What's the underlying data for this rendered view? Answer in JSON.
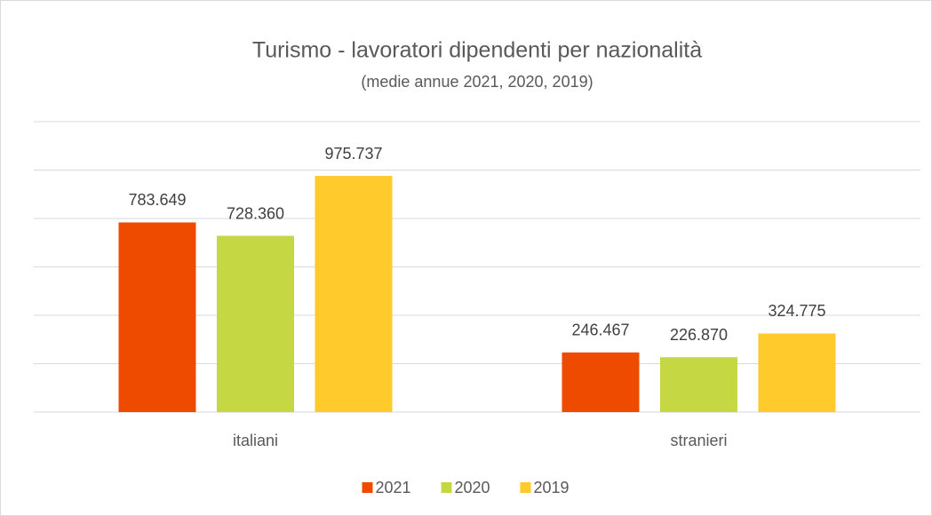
{
  "chart_data": {
    "type": "bar",
    "title": "Turismo - lavoratori dipendenti per nazionalità",
    "subtitle": "(medie annue 2021, 2020, 2019)",
    "categories": [
      "italiani",
      "stranieri"
    ],
    "series": [
      {
        "name": "2021",
        "color": "#ee4b00",
        "values": [
          783649,
          246467
        ],
        "value_labels": [
          "783.649",
          "246.467"
        ]
      },
      {
        "name": "2020",
        "color": "#c5d843",
        "values": [
          728360,
          226870
        ],
        "value_labels": [
          "728.360",
          "226.870"
        ]
      },
      {
        "name": "2019",
        "color": "#ffca2c",
        "values": [
          975737,
          324775
        ],
        "value_labels": [
          "975.737",
          "324.775"
        ]
      }
    ],
    "ylim": [
      0,
      1200000
    ],
    "yticks": [
      0,
      200000,
      400000,
      600000,
      800000,
      1000000,
      1200000
    ],
    "grid": true,
    "legend": "bottom"
  }
}
